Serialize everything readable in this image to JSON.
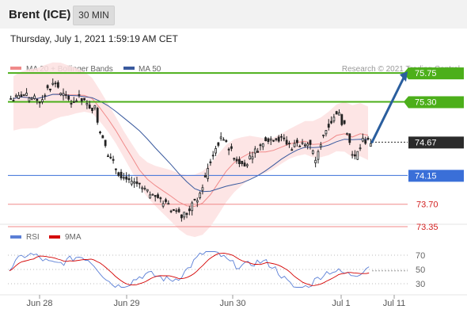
{
  "header": {
    "instrument": "Brent (ICE)",
    "timeframe": "30 MIN",
    "timestamp": "Thursday, July 1, 2021 1:59:19 AM CET"
  },
  "legend": {
    "ma20": "MA 20 + Bollinger Bands",
    "ma50": "MA 50",
    "credit": "Research © 2021 Trading Central"
  },
  "levels": [
    {
      "value": 75.75,
      "label": "75.75",
      "kind": "resistance"
    },
    {
      "value": 75.3,
      "label": "75.30",
      "kind": "resistance"
    },
    {
      "value": 74.67,
      "label": "74.67",
      "kind": "last"
    },
    {
      "value": 74.15,
      "label": "74.15",
      "kind": "pivot"
    },
    {
      "value": 73.7,
      "label": "73.70",
      "kind": "support"
    },
    {
      "value": 73.35,
      "label": "73.35",
      "kind": "support"
    }
  ],
  "rsi_legend": {
    "rsi": "RSI",
    "ma": "9MA"
  },
  "rsi_ticks": [
    "70",
    "50",
    "30"
  ],
  "x_ticks": [
    "Jun 28",
    "Jun 29",
    "Jun 30",
    "Jul 1",
    "Jul 11"
  ],
  "colors": {
    "up": "#1a1a1a",
    "down": "#1a1a1a",
    "resistance": "#4caf1a",
    "pivot": "#3a6fd8",
    "support": "#f08a8a",
    "last": "#2b2b2b",
    "ma20": "#f08a8a",
    "ma50": "#3a5a9e",
    "band": "#fde0e0",
    "arrow": "#2a5e9e",
    "rsi": "#5b7fd6",
    "rsi_ma": "#d40000"
  },
  "chart_data": {
    "type": "candlestick",
    "x_categories": [
      "Jun 28",
      "Jun 29",
      "Jun 30",
      "Jul 1",
      "Jul 11"
    ],
    "ylim": [
      73.3,
      75.9
    ],
    "close_approx": [
      75.35,
      75.4,
      75.35,
      75.3,
      75.5,
      75.6,
      75.4,
      75.3,
      75.35,
      75.25,
      75.2,
      74.7,
      74.4,
      74.2,
      74.1,
      74.05,
      73.95,
      73.85,
      73.8,
      73.7,
      73.6,
      73.5,
      73.6,
      73.8,
      74.1,
      74.5,
      74.7,
      74.6,
      74.4,
      74.3,
      74.5,
      74.6,
      74.7,
      74.75,
      74.7,
      74.6,
      74.65,
      74.7,
      74.4,
      74.8,
      75.0,
      75.1,
      74.8,
      74.4,
      74.7,
      74.67
    ],
    "support_resistance": [
      75.75,
      75.3,
      74.15,
      73.7,
      73.35
    ],
    "last_price": 74.67,
    "rsi_ticks": [
      70,
      50,
      30
    ]
  }
}
